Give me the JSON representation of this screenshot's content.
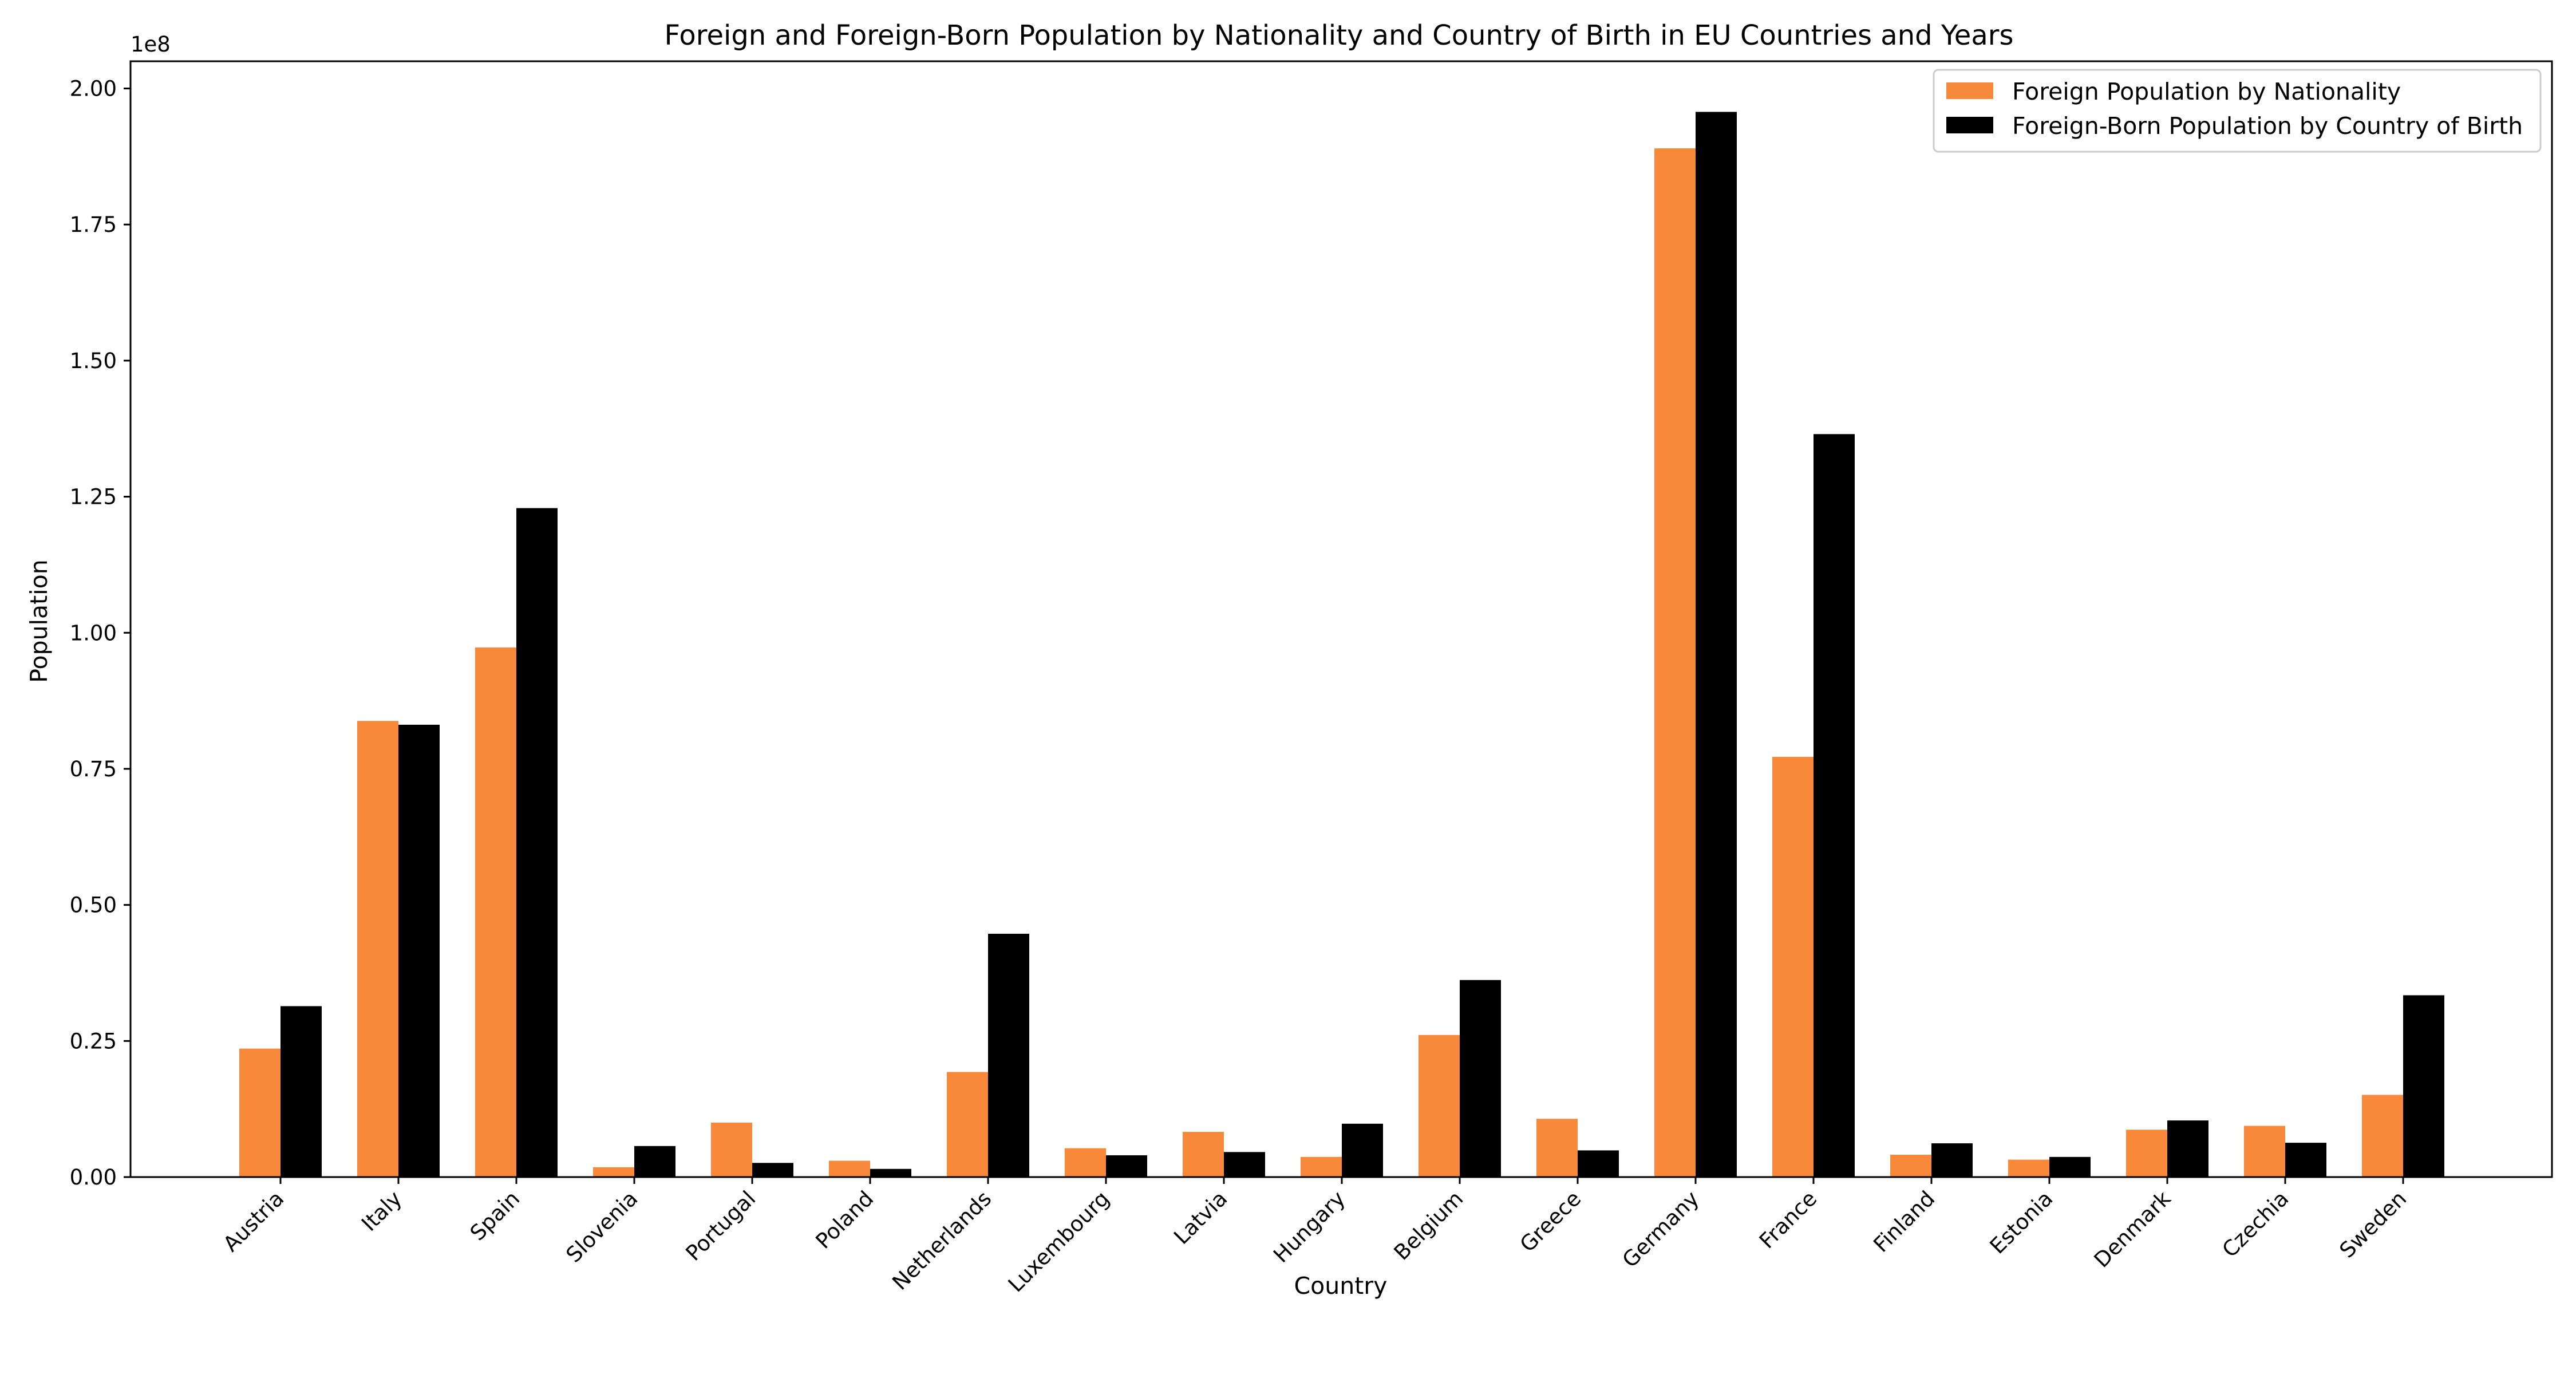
{
  "chart_data": {
    "type": "bar",
    "title": "Foreign and Foreign-Born Population by Nationality and Country of Birth in EU Countries and Years",
    "xlabel": "Country",
    "ylabel": "Population",
    "y_offset_text": "1e8",
    "ylim": [
      0,
      2.05
    ],
    "y_ticks": [
      "0.00",
      "0.25",
      "0.50",
      "0.75",
      "1.00",
      "1.25",
      "1.50",
      "1.75",
      "2.00"
    ],
    "categories": [
      "Austria",
      "Italy",
      "Spain",
      "Slovenia",
      "Portugal",
      "Poland",
      "Netherlands",
      "Luxembourg",
      "Latvia",
      "Hungary",
      "Belgium",
      "Greece",
      "Germany",
      "France",
      "Finland",
      "Estonia",
      "Denmark",
      "Czechia",
      "Sweden"
    ],
    "series": [
      {
        "name": "Foreign Population by Nationality",
        "color": "#f8883a",
        "values": [
          0.236,
          0.838,
          0.973,
          0.018,
          0.1,
          0.03,
          0.193,
          0.053,
          0.083,
          0.037,
          0.261,
          0.107,
          1.89,
          0.772,
          0.041,
          0.032,
          0.087,
          0.094,
          0.151
        ]
      },
      {
        "name": "Foreign-Born Population by Country of Birth",
        "color": "#000000",
        "values": [
          0.314,
          0.831,
          1.229,
          0.057,
          0.026,
          0.015,
          0.447,
          0.04,
          0.046,
          0.098,
          0.362,
          0.049,
          1.957,
          1.365,
          0.062,
          0.037,
          0.104,
          0.063,
          0.334
        ]
      }
    ],
    "legend_position": "top-right",
    "grid": false
  }
}
